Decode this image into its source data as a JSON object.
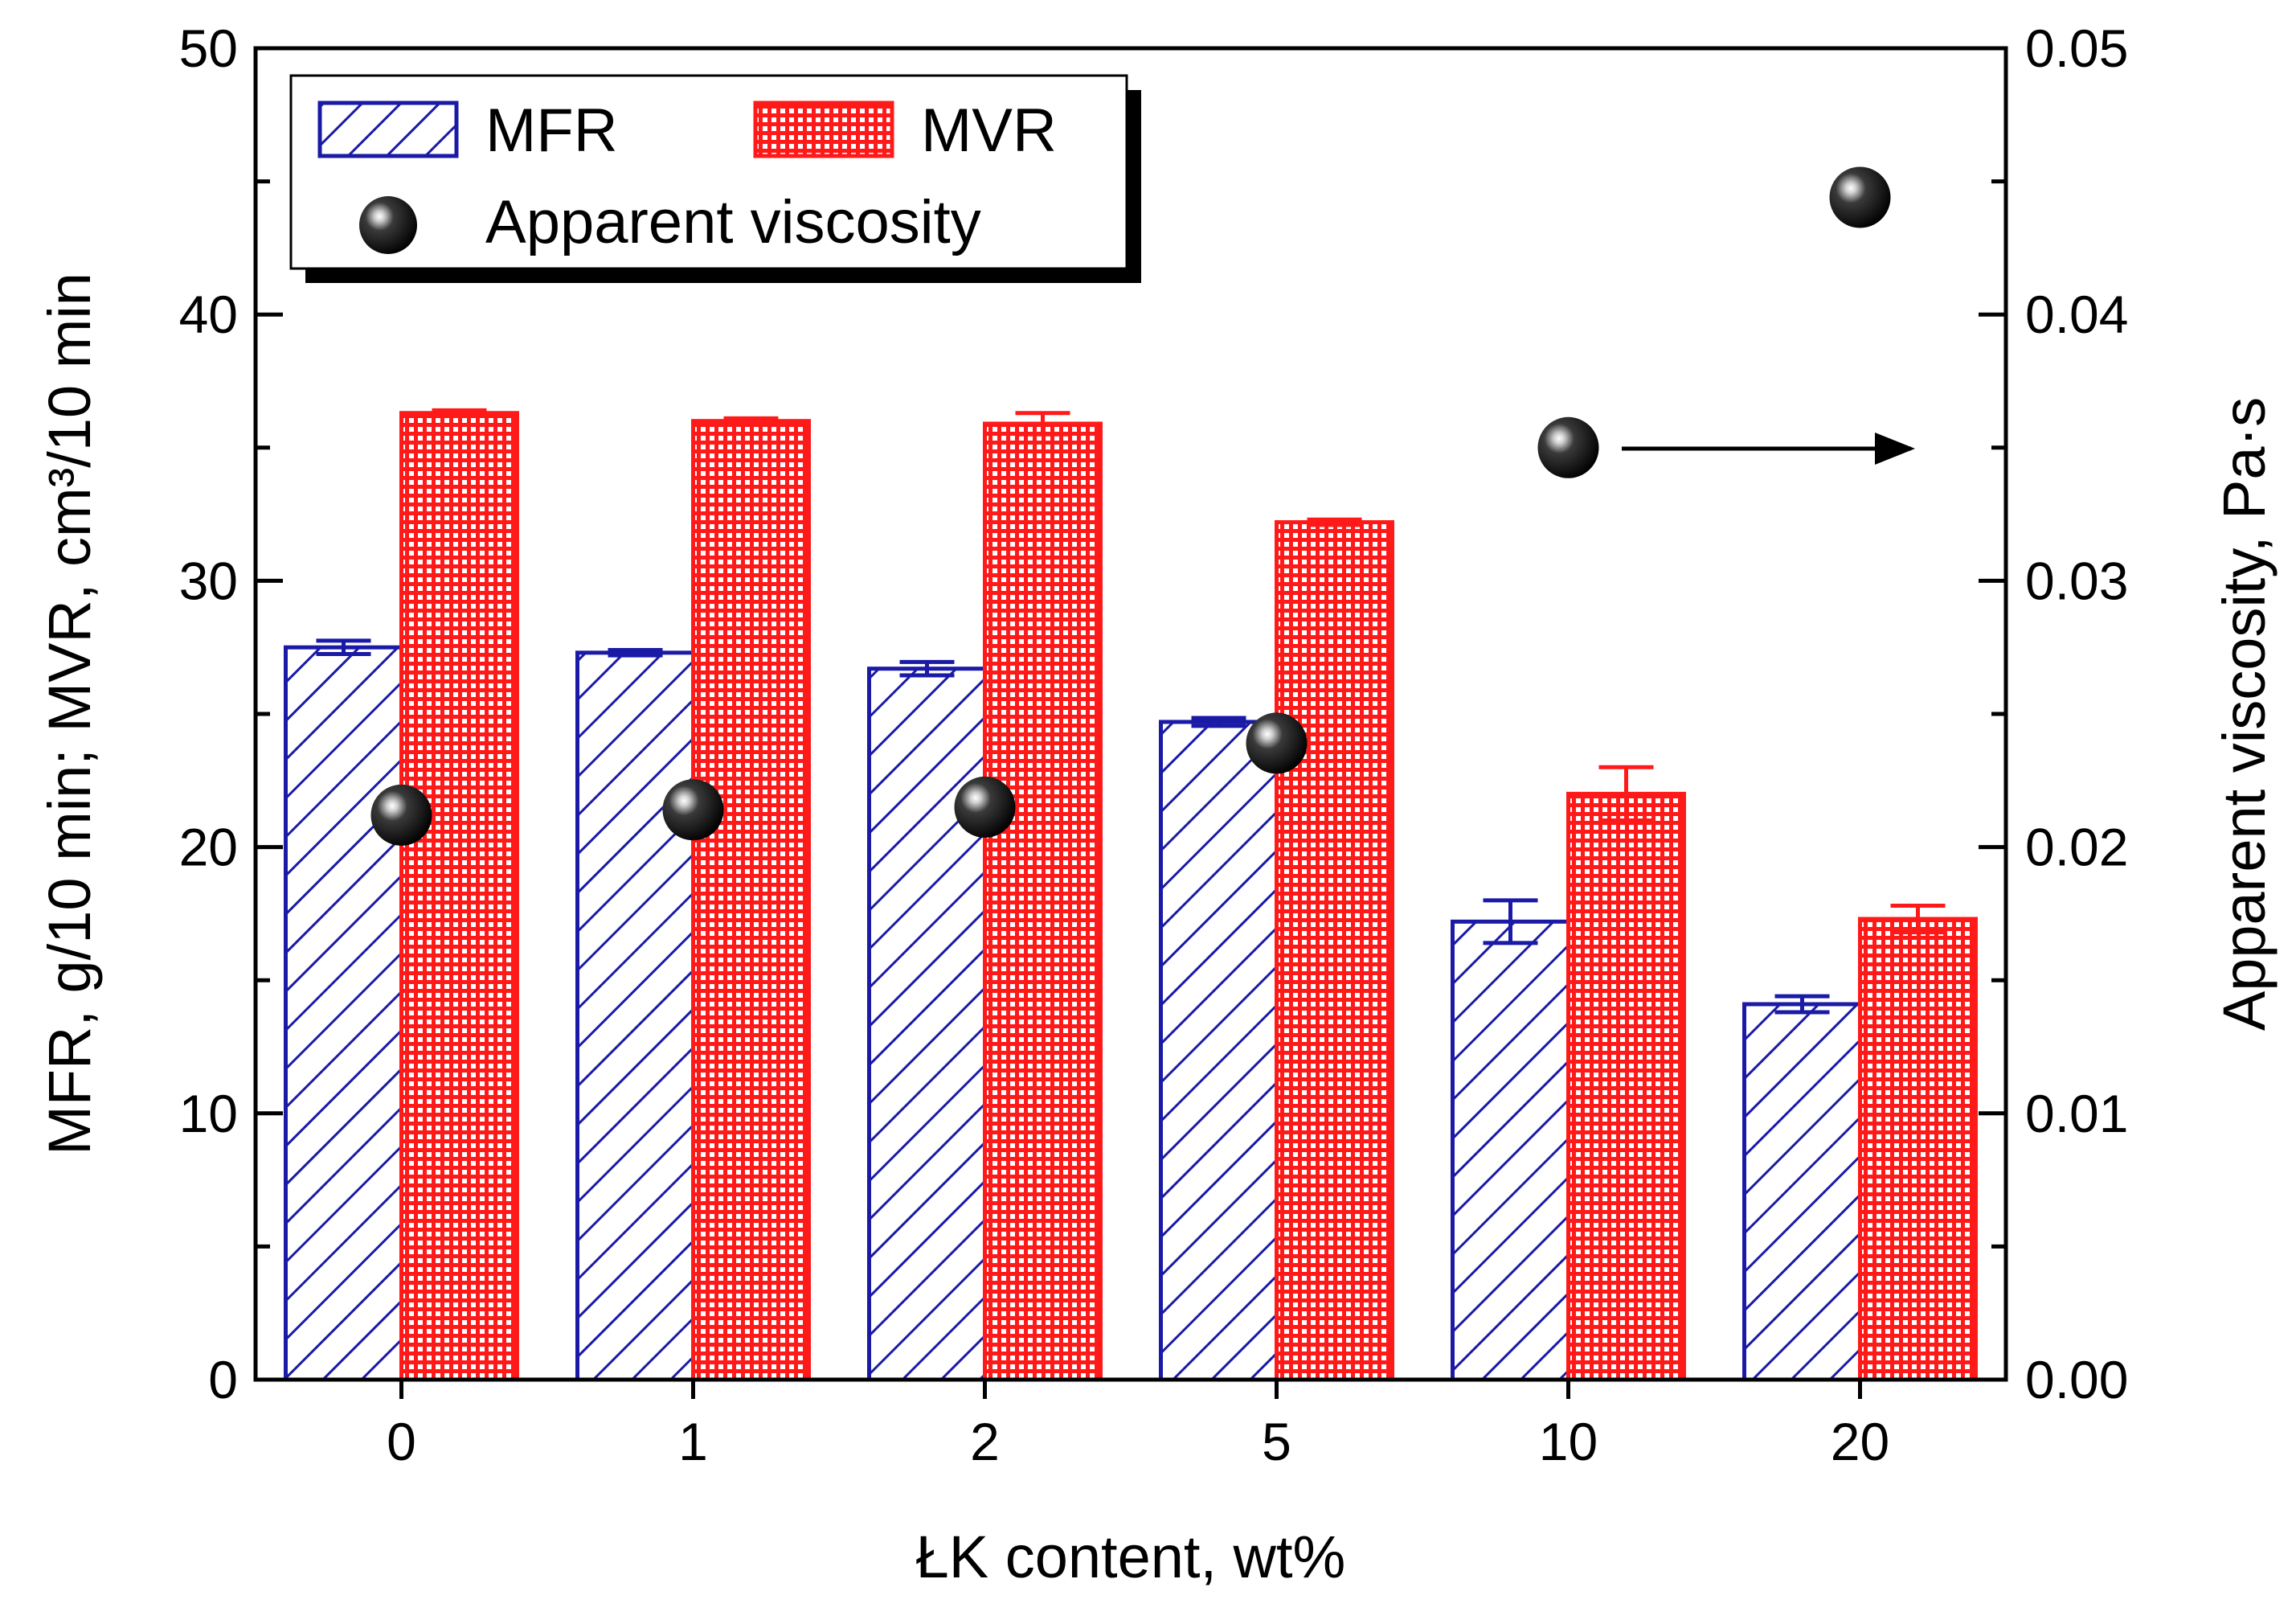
{
  "chart_data": {
    "type": "bar",
    "categories": [
      "0",
      "1",
      "2",
      "5",
      "10",
      "20"
    ],
    "xlabel": "ŁK content, wt%",
    "ylabel_left": "MFR, g/10 min; MVR, cm³/10 min",
    "ylabel_right": "Apparent viscosity, Pa·s",
    "ylim_left": [
      0,
      50
    ],
    "ylim_right": [
      0,
      0.05
    ],
    "yticks_left": [
      "0",
      "10",
      "20",
      "30",
      "40",
      "50"
    ],
    "yticks_right": [
      "0.00",
      "0.01",
      "0.02",
      "0.03",
      "0.04",
      "0.05"
    ],
    "series": [
      {
        "name": "MFR",
        "axis": "left",
        "kind": "bar",
        "pattern": "diagonal-hatch",
        "color": "#1a1aa6",
        "values": [
          27.5,
          27.3,
          26.7,
          24.7,
          17.2,
          14.1
        ],
        "errors": [
          0.25,
          0.1,
          0.25,
          0.15,
          0.8,
          0.3
        ]
      },
      {
        "name": "MVR",
        "axis": "left",
        "kind": "bar",
        "pattern": "grid",
        "color": "#ff1a1a",
        "values": [
          36.3,
          36.0,
          35.9,
          32.2,
          22.0,
          17.3
        ],
        "errors": [
          0.1,
          0.1,
          0.4,
          0.1,
          1.0,
          0.5
        ]
      },
      {
        "name": "Apparent viscosity",
        "axis": "right",
        "kind": "scatter",
        "marker": "sphere",
        "color": "#000000",
        "values": [
          0.0212,
          0.0214,
          0.0215,
          0.0239,
          0.035,
          0.0444
        ]
      }
    ],
    "legend": {
      "position": "top-left",
      "entries": [
        "MFR",
        "MVR",
        "Apparent viscosity"
      ]
    },
    "annotation": {
      "type": "arrow",
      "direction": "right",
      "points_to": "right-axis"
    },
    "grid": false
  }
}
